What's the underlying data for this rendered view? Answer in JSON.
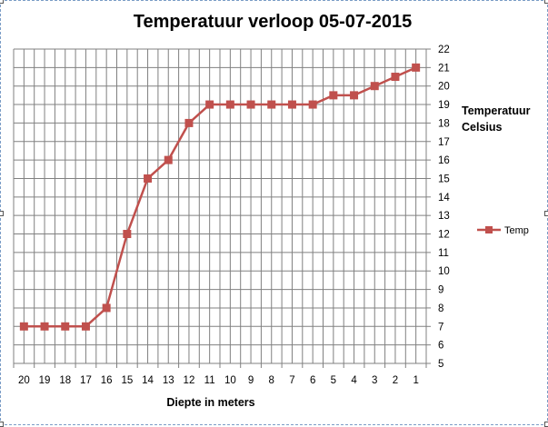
{
  "chart_data": {
    "type": "line",
    "title": "Temperatuur verloop 05-07-2015",
    "xlabel": "Diepte in meters",
    "ylabel_lines": [
      "Temperatuur",
      "Celsius"
    ],
    "categories": [
      "20",
      "19",
      "18",
      "17",
      "16",
      "15",
      "14",
      "13",
      "12",
      "11",
      "10",
      "9",
      "8",
      "7",
      "6",
      "5",
      "4",
      "3",
      "2",
      "1"
    ],
    "series": [
      {
        "name": "Temp",
        "color": "#c0504d",
        "values": [
          7,
          7,
          7,
          7,
          8,
          12,
          15,
          16,
          18,
          19,
          19,
          19,
          19,
          19,
          19,
          19.5,
          19.5,
          20,
          20.5,
          21
        ]
      }
    ],
    "ylim": [
      5,
      22
    ],
    "y_ticks": [
      5,
      6,
      7,
      8,
      9,
      10,
      11,
      12,
      13,
      14,
      15,
      16,
      17,
      18,
      19,
      20,
      21,
      22
    ],
    "y_axis_side": "right",
    "grid": true,
    "legend_position": "right",
    "colors": {
      "gridline": "#808080",
      "axis": "#808080",
      "series": "#c0504d"
    }
  }
}
